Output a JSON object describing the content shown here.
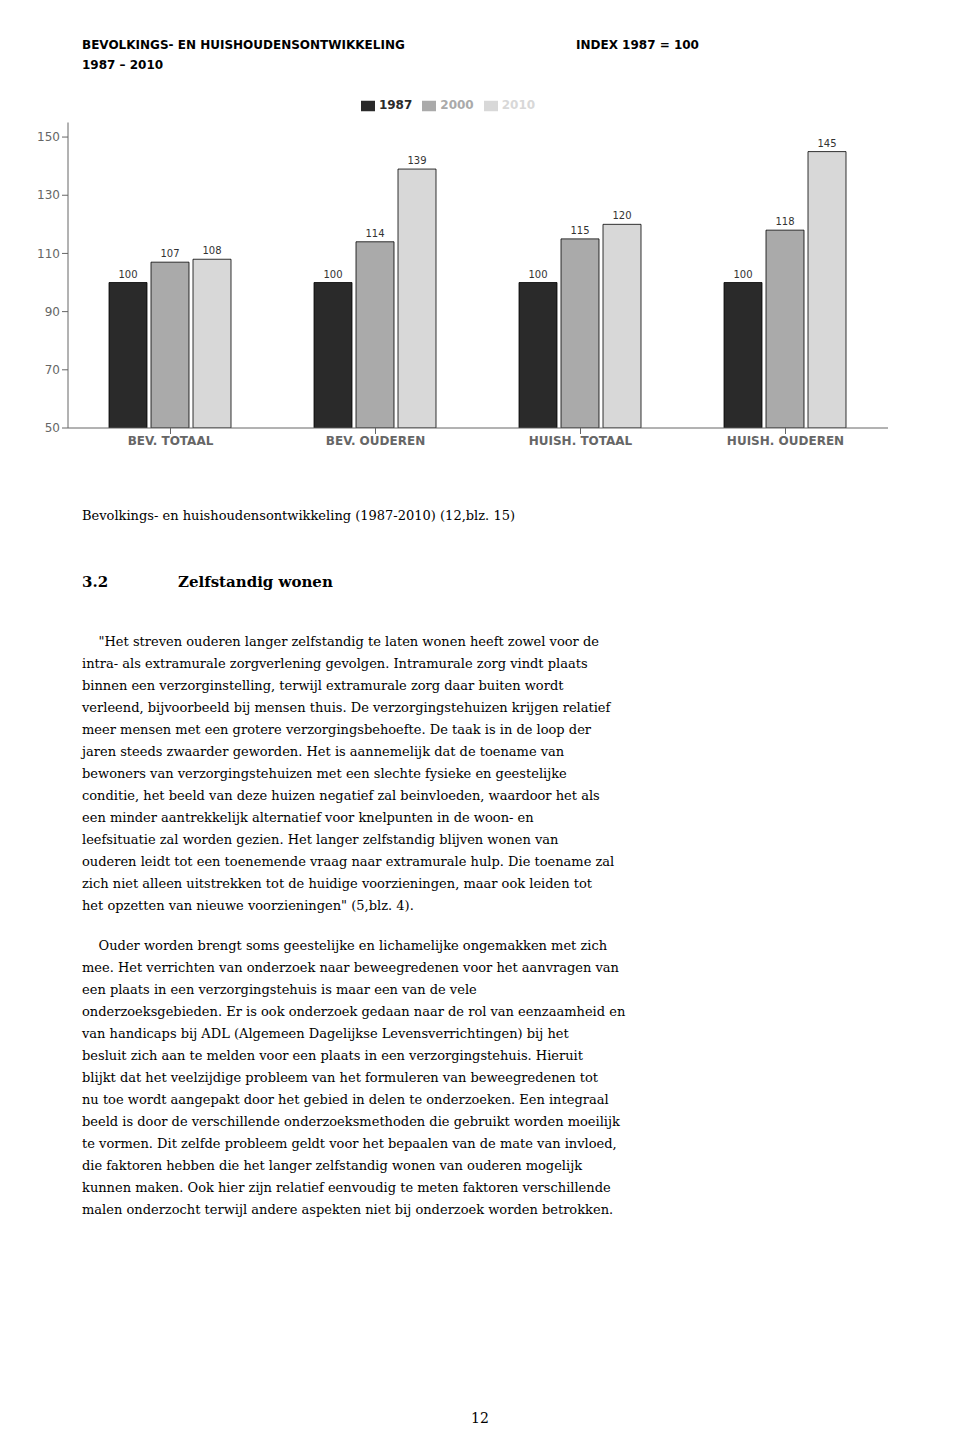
{
  "chart_data": {
    "type": "bar",
    "title": "BEVOLKINGS- EN HUISHOUDENSONTWIKKELING",
    "subtitle": "1987 – 2010",
    "annotation": "INDEX 1987 = 100",
    "categories": [
      "BEV. TOTAAL",
      "BEV. OUDEREN",
      "HUISH. TOTAAL",
      "HUISH. OUDEREN"
    ],
    "series": [
      {
        "name": "1987",
        "color": "#2a2a2a",
        "values": [
          100,
          100,
          100,
          100
        ]
      },
      {
        "name": "2000",
        "color": "#aaaaaa",
        "values": [
          107,
          114,
          115,
          118
        ]
      },
      {
        "name": "2010",
        "color": "#d8d8d8",
        "values": [
          108,
          139,
          120,
          145
        ]
      }
    ],
    "ylim": [
      50,
      155
    ],
    "yticks": [
      50,
      70,
      90,
      110,
      130,
      150
    ],
    "grid": false,
    "legend": "top",
    "data_labels": true,
    "caption": "Bevolkings- en huishoudensontwikkeling (1987-2010) (12,blz. 15)",
    "section_number": "3.2",
    "section_title": "Zelfstandig wonen",
    "paragraphs": [
      [
        "    \"Het streven ouderen langer zelfstandig te laten wonen heeft zowel voor de",
        "intra- als extramurale zorgverlening gevolgen. Intramurale zorg vindt plaats",
        "binnen een verzorginstelling, terwijl extramurale zorg daar buiten wordt",
        "verleend, bijvoorbeeld bij mensen thuis. De verzorgingstehuizen krijgen relatief",
        "meer mensen met een grotere verzorgingsbehoefte. De taak is in de loop der",
        "jaren steeds zwaarder geworden. Het is aannemelijk dat de toename van",
        "bewoners van verzorgingstehuizen met een slechte fysieke en geestelijke",
        "conditie, het beeld van deze huizen negatief zal beinvloeden, waardoor het als",
        "een minder aantrekkelijk alternatief voor knelpunten in de woon- en",
        "leefsituatie zal worden gezien. Het langer zelfstandig blijven wonen van",
        "ouderen leidt tot een toenemende vraag naar extramurale hulp. Die toename zal",
        "zich niet alleen uitstrekken tot de huidige voorzieningen, maar ook leiden tot",
        "het opzetten van nieuwe voorzieningen\" (5,blz. 4)."
      ],
      [
        "    Ouder worden brengt soms geestelijke en lichamelijke ongemakken met zich",
        "mee. Het verrichten van onderzoek naar beweegredenen voor het aanvragen van",
        "een plaats in een verzorgingstehuis is maar een van de vele",
        "onderzoeksgebieden. Er is ook onderzoek gedaan naar de rol van eenzaamheid en",
        "van handicaps bij ADL (Algemeen Dagelijkse Levensverrichtingen) bij het",
        "besluit zich aan te melden voor een plaats in een verzorgingstehuis. Hieruit",
        "blijkt dat het veelzijdige probleem van het formuleren van beweegredenen tot",
        "nu toe wordt aangepakt door het gebied in delen te onderzoeken. Een integraal",
        "beeld is door de verschillende onderzoeksmethoden die gebruikt worden moeilijk",
        "te vormen. Dit zelfde probleem geldt voor het bepaalen van de mate van invloed,",
        "die faktoren hebben die het langer zelfstandig wonen van ouderen mogelijk",
        "kunnen maken. Ook hier zijn relatief eenvoudig te meten faktoren verschillende",
        "malen onderzocht terwijl andere aspekten niet bij onderzoek worden betrokken."
      ]
    ],
    "page_number": "12"
  }
}
